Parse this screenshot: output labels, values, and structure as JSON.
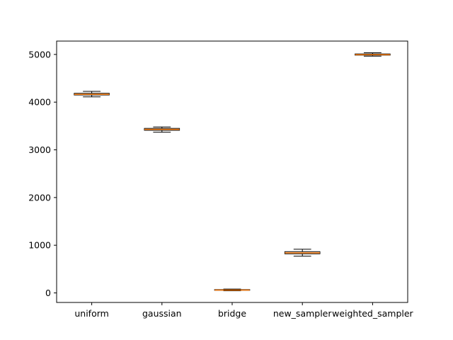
{
  "chart_data": {
    "type": "boxplot",
    "title": "",
    "xlabel": "",
    "ylabel": "",
    "categories": [
      "uniform",
      "gaussian",
      "bridge",
      "new_sampler",
      "weighted_sampler"
    ],
    "boxes": [
      {
        "category": "uniform",
        "whisker_low": 4110,
        "q1": 4150,
        "median": 4165,
        "q3": 4185,
        "whisker_high": 4225
      },
      {
        "category": "gaussian",
        "whisker_low": 3370,
        "q1": 3410,
        "median": 3430,
        "q3": 3450,
        "whisker_high": 3480
      },
      {
        "category": "bridge",
        "whisker_low": 45,
        "q1": 55,
        "median": 60,
        "q3": 70,
        "whisker_high": 80
      },
      {
        "category": "new_sampler",
        "whisker_low": 770,
        "q1": 820,
        "median": 840,
        "q3": 865,
        "whisker_high": 915
      },
      {
        "category": "weighted_sampler",
        "whisker_low": 4965,
        "q1": 4985,
        "median": 4995,
        "q3": 5010,
        "whisker_high": 5035
      }
    ],
    "y_ticks": [
      0,
      1000,
      2000,
      3000,
      4000,
      5000
    ],
    "ylim": [
      -200,
      5280
    ],
    "grid": false,
    "legend": "none",
    "colors": {
      "box": "#000000",
      "median": "#ff7f0e",
      "axis": "#000000"
    }
  }
}
